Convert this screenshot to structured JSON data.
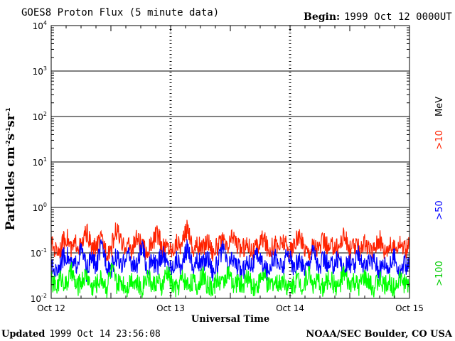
{
  "header": {
    "title": "GOES8 Proton Flux (5 minute data)",
    "begin_label": "Begin:",
    "begin_value": "1999 Oct 12 0000UT"
  },
  "footer": {
    "updated_label": "Updated",
    "updated_value": "1999 Oct 14 23:56:08",
    "source": "NOAA/SEC Boulder, CO USA"
  },
  "side_labels": {
    "mev": "MeV",
    "ch10": ">10",
    "ch50": ">50",
    "ch100": ">100"
  },
  "colors": {
    "ch10": "#ff2200",
    "ch50": "#0000ff",
    "ch100": "#00ff00"
  },
  "chart_data": {
    "type": "line",
    "title": "GOES8 Proton Flux (5 minute data)",
    "xlabel": "Universal Time",
    "ylabel": "Particles cm-2s-1sr-1",
    "yscale": "log",
    "ylim": [
      0.01,
      10000
    ],
    "y_ticks": [
      {
        "base": "10",
        "exp": "-2"
      },
      {
        "base": "10",
        "exp": "-1"
      },
      {
        "base": "10",
        "exp": "0"
      },
      {
        "base": "10",
        "exp": "1"
      },
      {
        "base": "10",
        "exp": "2"
      },
      {
        "base": "10",
        "exp": "3"
      },
      {
        "base": "10",
        "exp": "4"
      }
    ],
    "x_ticks": [
      "Oct 12",
      "Oct 13",
      "Oct 14",
      "Oct 15"
    ],
    "xlim_days": [
      0,
      3
    ],
    "series": [
      {
        "name": ">10 MeV",
        "key": "ch10",
        "values": [
          0.16,
          0.12,
          0.14,
          0.25,
          0.11,
          0.18,
          0.13,
          0.3,
          0.12,
          0.15,
          0.2,
          0.11,
          0.14,
          0.35,
          0.13,
          0.17,
          0.12,
          0.22,
          0.14,
          0.11,
          0.16,
          0.28,
          0.13,
          0.15,
          0.12,
          0.19,
          0.14,
          0.4,
          0.12,
          0.16,
          0.13,
          0.21,
          0.11,
          0.15,
          0.18,
          0.12,
          0.26,
          0.14,
          0.13,
          0.17,
          0.11,
          0.15,
          0.23,
          0.12,
          0.16,
          0.14,
          0.19,
          0.12,
          0.13,
          0.24,
          0.15,
          0.11,
          0.17,
          0.13,
          0.2,
          0.12,
          0.16,
          0.14,
          0.27,
          0.12,
          0.15,
          0.13,
          0.18,
          0.11,
          0.14,
          0.22,
          0.12,
          0.16,
          0.13,
          0.19,
          0.12,
          0.15
        ]
      },
      {
        "name": ">50",
        "key": "ch50",
        "values": [
          0.05,
          0.04,
          0.07,
          0.1,
          0.05,
          0.06,
          0.12,
          0.04,
          0.08,
          0.05,
          0.14,
          0.06,
          0.05,
          0.09,
          0.04,
          0.11,
          0.06,
          0.05,
          0.13,
          0.04,
          0.07,
          0.05,
          0.1,
          0.06,
          0.05,
          0.08,
          0.04,
          0.15,
          0.05,
          0.07,
          0.06,
          0.09,
          0.04,
          0.06,
          0.12,
          0.05,
          0.08,
          0.05,
          0.04,
          0.07,
          0.06,
          0.1,
          0.05,
          0.04,
          0.09,
          0.06,
          0.05,
          0.11,
          0.04,
          0.07,
          0.05,
          0.06,
          0.13,
          0.04,
          0.08,
          0.05,
          0.06,
          0.09,
          0.04,
          0.07,
          0.05,
          0.1,
          0.05,
          0.06,
          0.08,
          0.04,
          0.07,
          0.05,
          0.09,
          0.04,
          0.06,
          0.05
        ]
      },
      {
        "name": ">100",
        "key": "ch100",
        "values": [
          0.025,
          0.018,
          0.03,
          0.02,
          0.04,
          0.017,
          0.025,
          0.035,
          0.018,
          0.022,
          0.03,
          0.017,
          0.045,
          0.02,
          0.025,
          0.018,
          0.03,
          0.022,
          0.017,
          0.035,
          0.02,
          0.025,
          0.018,
          0.04,
          0.02,
          0.017,
          0.03,
          0.022,
          0.025,
          0.018,
          0.035,
          0.02,
          0.017,
          0.028,
          0.022,
          0.04,
          0.018,
          0.025,
          0.02,
          0.03,
          0.017,
          0.022,
          0.035,
          0.018,
          0.025,
          0.02,
          0.03,
          0.017,
          0.022,
          0.028,
          0.018,
          0.04,
          0.02,
          0.025,
          0.017,
          0.03,
          0.022,
          0.018,
          0.035,
          0.02,
          0.025,
          0.017,
          0.03,
          0.022,
          0.018,
          0.028,
          0.02,
          0.025,
          0.017,
          0.03,
          0.022,
          0.02
        ]
      }
    ],
    "grid": true
  }
}
